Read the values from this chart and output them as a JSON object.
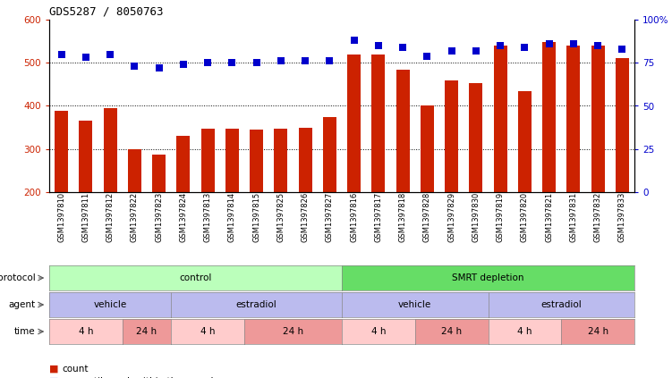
{
  "title": "GDS5287 / 8050763",
  "samples": [
    "GSM1397810",
    "GSM1397811",
    "GSM1397812",
    "GSM1397822",
    "GSM1397823",
    "GSM1397824",
    "GSM1397813",
    "GSM1397814",
    "GSM1397815",
    "GSM1397825",
    "GSM1397826",
    "GSM1397827",
    "GSM1397816",
    "GSM1397817",
    "GSM1397818",
    "GSM1397828",
    "GSM1397829",
    "GSM1397830",
    "GSM1397819",
    "GSM1397820",
    "GSM1397821",
    "GSM1397831",
    "GSM1397832",
    "GSM1397833"
  ],
  "counts": [
    388,
    365,
    395,
    300,
    288,
    330,
    348,
    348,
    345,
    348,
    350,
    375,
    520,
    520,
    483,
    400,
    460,
    452,
    540,
    435,
    548,
    540,
    540,
    510
  ],
  "percentiles": [
    80,
    78,
    80,
    73,
    72,
    74,
    75,
    75,
    75,
    76,
    76,
    76,
    88,
    85,
    84,
    79,
    82,
    82,
    85,
    84,
    86,
    86,
    85,
    83
  ],
  "bar_color": "#CC2200",
  "dot_color": "#0000CC",
  "ylim_left": [
    200,
    600
  ],
  "ylim_right": [
    0,
    100
  ],
  "yticks_left": [
    200,
    300,
    400,
    500,
    600
  ],
  "yticks_right": [
    0,
    25,
    50,
    75,
    100
  ],
  "ytick_labels_right": [
    "0",
    "25",
    "50",
    "75",
    "100%"
  ],
  "hlines": [
    300,
    400,
    500
  ],
  "protocol_labels": [
    "control",
    "SMRT depletion"
  ],
  "agent_labels": [
    "vehicle",
    "estradiol",
    "vehicle",
    "estradiol"
  ],
  "time_labels": [
    "4 h",
    "24 h",
    "4 h",
    "24 h",
    "4 h",
    "24 h",
    "4 h",
    "24 h"
  ],
  "protocol_color1": "#BBFFBB",
  "protocol_color2": "#66DD66",
  "agent_color": "#BBBBEE",
  "time_color_4h": "#FFCCCC",
  "time_color_24h": "#EE9999",
  "bg_color": "#FFFFFF",
  "n_samples": 24,
  "control_count": 12,
  "smrt_count": 12,
  "vehicle1_count": 5,
  "estradiol1_count": 7,
  "vehicle2_count": 6,
  "estradiol2_count": 6,
  "t1_4h": 3,
  "t1_24h": 2,
  "t2_4h": 3,
  "t2_24h": 4,
  "t3_4h": 3,
  "t3_24h": 3,
  "t4_4h": 3,
  "t4_24h": 3
}
